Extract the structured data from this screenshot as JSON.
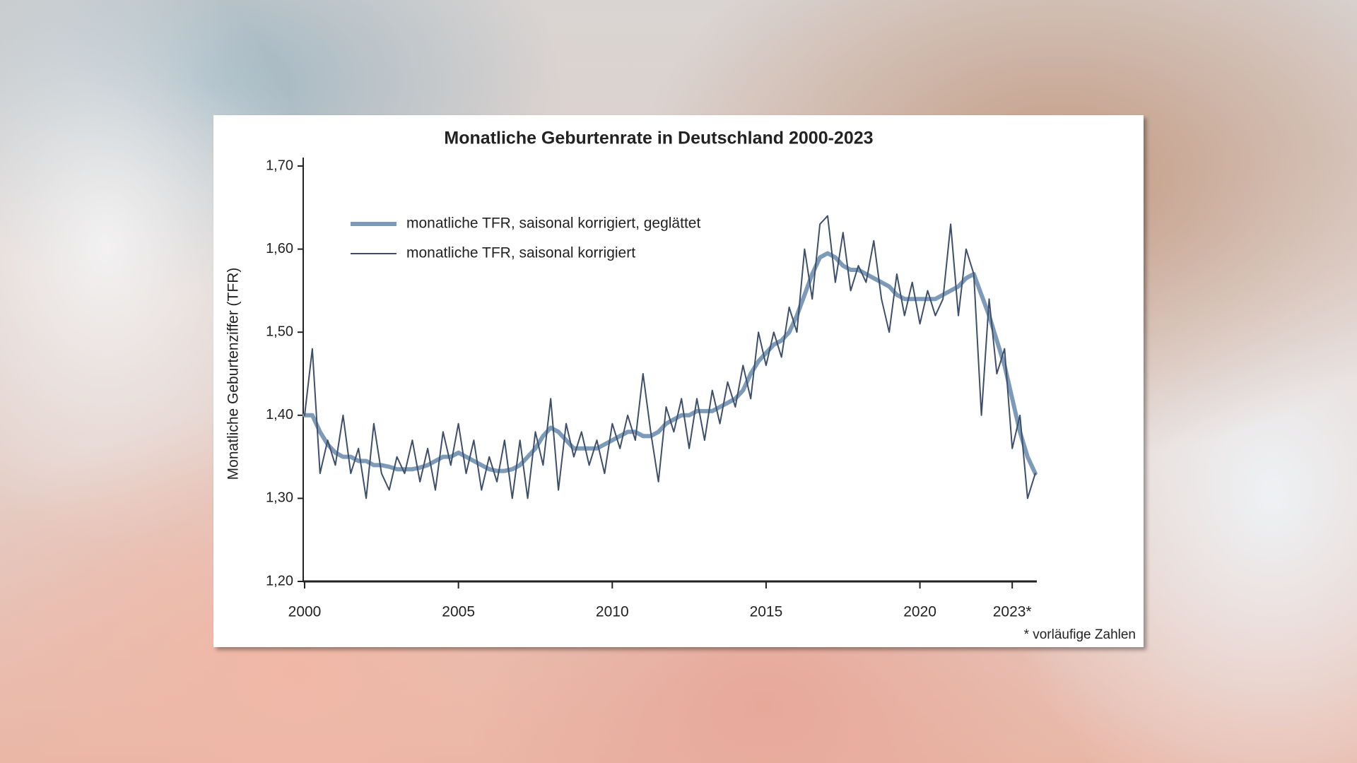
{
  "chart_data": {
    "type": "line",
    "title": "Monatliche Geburtenrate in Deutschland 2000-2023",
    "y_label": "Monatliche Geburtenziffer (TFR)",
    "footnote": "* vorläufige Zahlen",
    "legend": "upper left",
    "xlim": [
      2000,
      2023.8
    ],
    "xticks": [
      2000,
      2005,
      2010,
      2015,
      2020,
      {
        "value": 2023,
        "label": "2023*"
      }
    ],
    "ylim": [
      1.2,
      1.7
    ],
    "yticks": [
      {
        "value": 1.2,
        "label": "1,20"
      },
      {
        "value": 1.3,
        "label": "1,30"
      },
      {
        "value": 1.4,
        "label": "1,40"
      },
      {
        "value": 1.5,
        "label": "1,50"
      },
      {
        "value": 1.6,
        "label": "1,60"
      },
      {
        "value": 1.7,
        "label": "1,70"
      }
    ],
    "x": [
      2000,
      2000.25,
      2000.5,
      2000.75,
      2001,
      2001.25,
      2001.5,
      2001.75,
      2002,
      2002.25,
      2002.5,
      2002.75,
      2003,
      2003.25,
      2003.5,
      2003.75,
      2004,
      2004.25,
      2004.5,
      2004.75,
      2005,
      2005.25,
      2005.5,
      2005.75,
      2006,
      2006.25,
      2006.5,
      2006.75,
      2007,
      2007.25,
      2007.5,
      2007.75,
      2008,
      2008.25,
      2008.5,
      2008.75,
      2009,
      2009.25,
      2009.5,
      2009.75,
      2010,
      2010.25,
      2010.5,
      2010.75,
      2011,
      2011.25,
      2011.5,
      2011.75,
      2012,
      2012.25,
      2012.5,
      2012.75,
      2013,
      2013.25,
      2013.5,
      2013.75,
      2014,
      2014.25,
      2014.5,
      2014.75,
      2015,
      2015.25,
      2015.5,
      2015.75,
      2016,
      2016.25,
      2016.5,
      2016.75,
      2017,
      2017.25,
      2017.5,
      2017.75,
      2018,
      2018.25,
      2018.5,
      2018.75,
      2019,
      2019.25,
      2019.5,
      2019.75,
      2020,
      2020.25,
      2020.5,
      2020.75,
      2021,
      2021.25,
      2021.5,
      2021.75,
      2022,
      2022.25,
      2022.5,
      2022.75,
      2023,
      2023.25,
      2023.5,
      2023.75
    ],
    "series": [
      {
        "name": "monatliche TFR, saisonal korrigiert, geglättet",
        "color": "#7d9bb8",
        "width": 6,
        "values": [
          1.4,
          1.4,
          1.38,
          1.365,
          1.355,
          1.35,
          1.35,
          1.345,
          1.345,
          1.34,
          1.34,
          1.338,
          1.335,
          1.335,
          1.335,
          1.337,
          1.34,
          1.345,
          1.35,
          1.35,
          1.355,
          1.35,
          1.345,
          1.34,
          1.335,
          1.333,
          1.333,
          1.335,
          1.34,
          1.35,
          1.36,
          1.375,
          1.385,
          1.38,
          1.37,
          1.36,
          1.36,
          1.36,
          1.36,
          1.365,
          1.37,
          1.375,
          1.38,
          1.38,
          1.375,
          1.375,
          1.38,
          1.39,
          1.395,
          1.4,
          1.4,
          1.405,
          1.405,
          1.405,
          1.41,
          1.415,
          1.42,
          1.43,
          1.45,
          1.465,
          1.475,
          1.485,
          1.49,
          1.5,
          1.52,
          1.545,
          1.57,
          1.59,
          1.595,
          1.59,
          1.58,
          1.575,
          1.575,
          1.57,
          1.565,
          1.56,
          1.555,
          1.545,
          1.54,
          1.54,
          1.54,
          1.54,
          1.54,
          1.545,
          1.55,
          1.555,
          1.565,
          1.57,
          1.545,
          1.52,
          1.49,
          1.46,
          1.42,
          1.38,
          1.35,
          1.33
        ]
      },
      {
        "name": "monatliche TFR, saisonal korrigiert",
        "color": "#3d4f6a",
        "width": 2,
        "values": [
          1.4,
          1.48,
          1.33,
          1.37,
          1.34,
          1.4,
          1.33,
          1.36,
          1.3,
          1.39,
          1.33,
          1.31,
          1.35,
          1.33,
          1.37,
          1.32,
          1.36,
          1.31,
          1.38,
          1.34,
          1.39,
          1.33,
          1.37,
          1.31,
          1.35,
          1.32,
          1.37,
          1.3,
          1.37,
          1.3,
          1.38,
          1.34,
          1.42,
          1.31,
          1.39,
          1.35,
          1.38,
          1.34,
          1.37,
          1.33,
          1.39,
          1.36,
          1.4,
          1.37,
          1.45,
          1.38,
          1.32,
          1.41,
          1.38,
          1.42,
          1.36,
          1.42,
          1.37,
          1.43,
          1.39,
          1.44,
          1.41,
          1.46,
          1.42,
          1.5,
          1.46,
          1.5,
          1.47,
          1.53,
          1.5,
          1.6,
          1.54,
          1.63,
          1.64,
          1.56,
          1.62,
          1.55,
          1.58,
          1.56,
          1.61,
          1.54,
          1.5,
          1.57,
          1.52,
          1.56,
          1.51,
          1.55,
          1.52,
          1.54,
          1.63,
          1.52,
          1.6,
          1.57,
          1.4,
          1.54,
          1.45,
          1.48,
          1.36,
          1.4,
          1.3,
          1.33
        ]
      }
    ]
  }
}
